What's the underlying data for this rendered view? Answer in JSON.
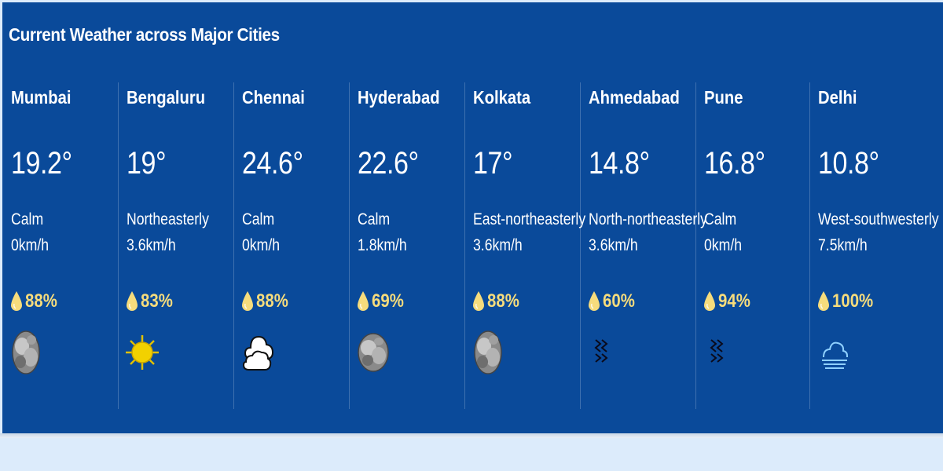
{
  "header": {
    "title": "Current Weather across Major Cities"
  },
  "cities": [
    {
      "name": "Mumbai",
      "temp": "19.2°",
      "wind_dir": "Calm",
      "wind_speed": "0km/h",
      "humidity": "88%",
      "icon": "cloudy-icon"
    },
    {
      "name": "Bengaluru",
      "temp": "19°",
      "wind_dir": "Northeasterly",
      "wind_speed": "3.6km/h",
      "humidity": "83%",
      "icon": "sun-icon"
    },
    {
      "name": "Chennai",
      "temp": "24.6°",
      "wind_dir": "Calm",
      "wind_speed": "0km/h",
      "humidity": "88%",
      "icon": "partly-cloudy-icon"
    },
    {
      "name": "Hyderabad",
      "temp": "22.6°",
      "wind_dir": "Calm",
      "wind_speed": "1.8km/h",
      "humidity": "69%",
      "icon": "cloudy-icon"
    },
    {
      "name": "Kolkata",
      "temp": "17°",
      "wind_dir": "East-northeasterly",
      "wind_speed": "3.6km/h",
      "humidity": "88%",
      "icon": "cloudy-icon"
    },
    {
      "name": "Ahmedabad",
      "temp": "14.8°",
      "wind_dir": "North-northeasterly",
      "wind_speed": "3.6km/h",
      "humidity": "60%",
      "icon": "haze-icon"
    },
    {
      "name": "Pune",
      "temp": "16.8°",
      "wind_dir": "Calm",
      "wind_speed": "0km/h",
      "humidity": "94%",
      "icon": "haze-icon"
    },
    {
      "name": "Delhi",
      "temp": "10.8°",
      "wind_dir": "West-southwesterly",
      "wind_speed": "7.5km/h",
      "humidity": "100%",
      "icon": "fog-icon"
    }
  ],
  "colors": {
    "panel": "#0a4a9a",
    "humidity": "#f6dc7c",
    "background": "#dcebfb"
  }
}
